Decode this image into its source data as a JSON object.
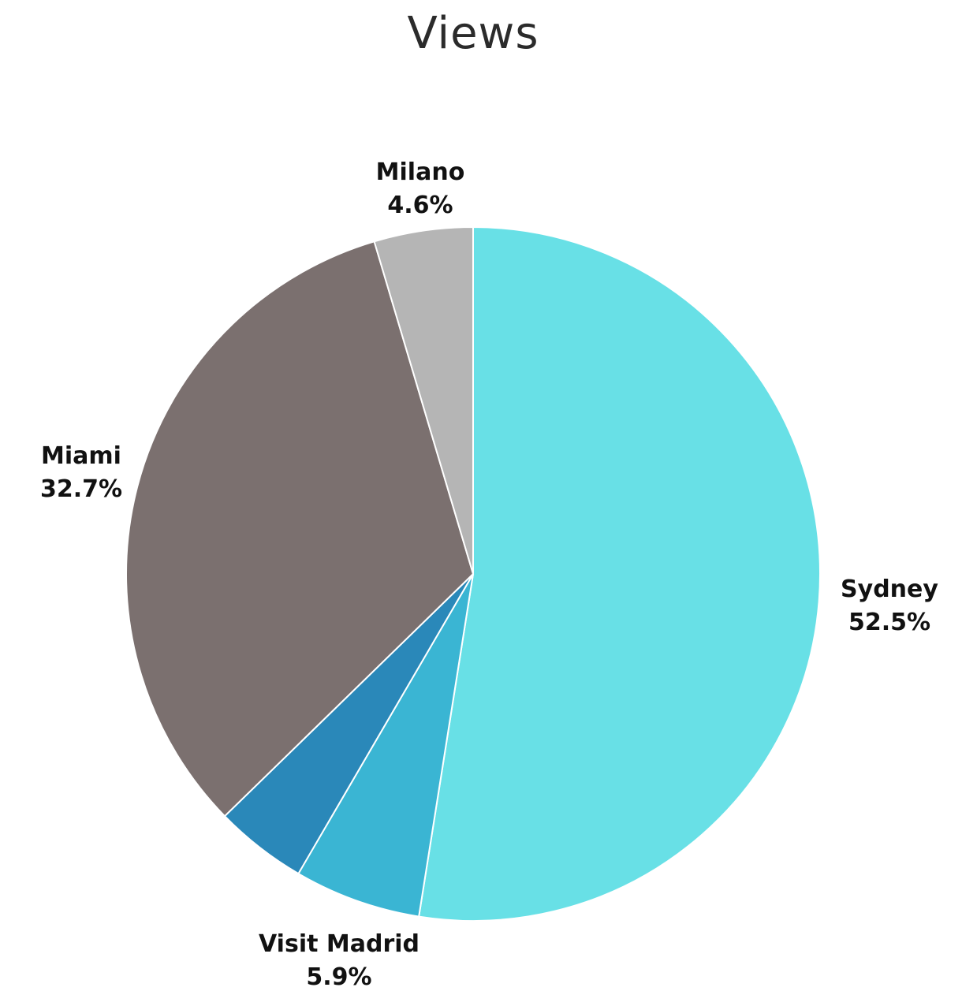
{
  "chart_data": {
    "type": "pie",
    "title": "Views",
    "start_angle_deg": 0,
    "direction": "clockwise",
    "slices": [
      {
        "label": "Sydney",
        "value": 52.5,
        "value_label": "52.5%",
        "color": "#68e0e6"
      },
      {
        "label": "Visit Madrid",
        "value": 5.9,
        "value_label": "5.9%",
        "color": "#3ab5d3"
      },
      {
        "label": "",
        "value": 4.3,
        "value_label": "",
        "color": "#2a88b9"
      },
      {
        "label": "Miami",
        "value": 32.7,
        "value_label": "32.7%",
        "color": "#7b706f"
      },
      {
        "label": "Milano",
        "value": 4.6,
        "value_label": "4.6%",
        "color": "#b5b5b5"
      }
    ]
  }
}
